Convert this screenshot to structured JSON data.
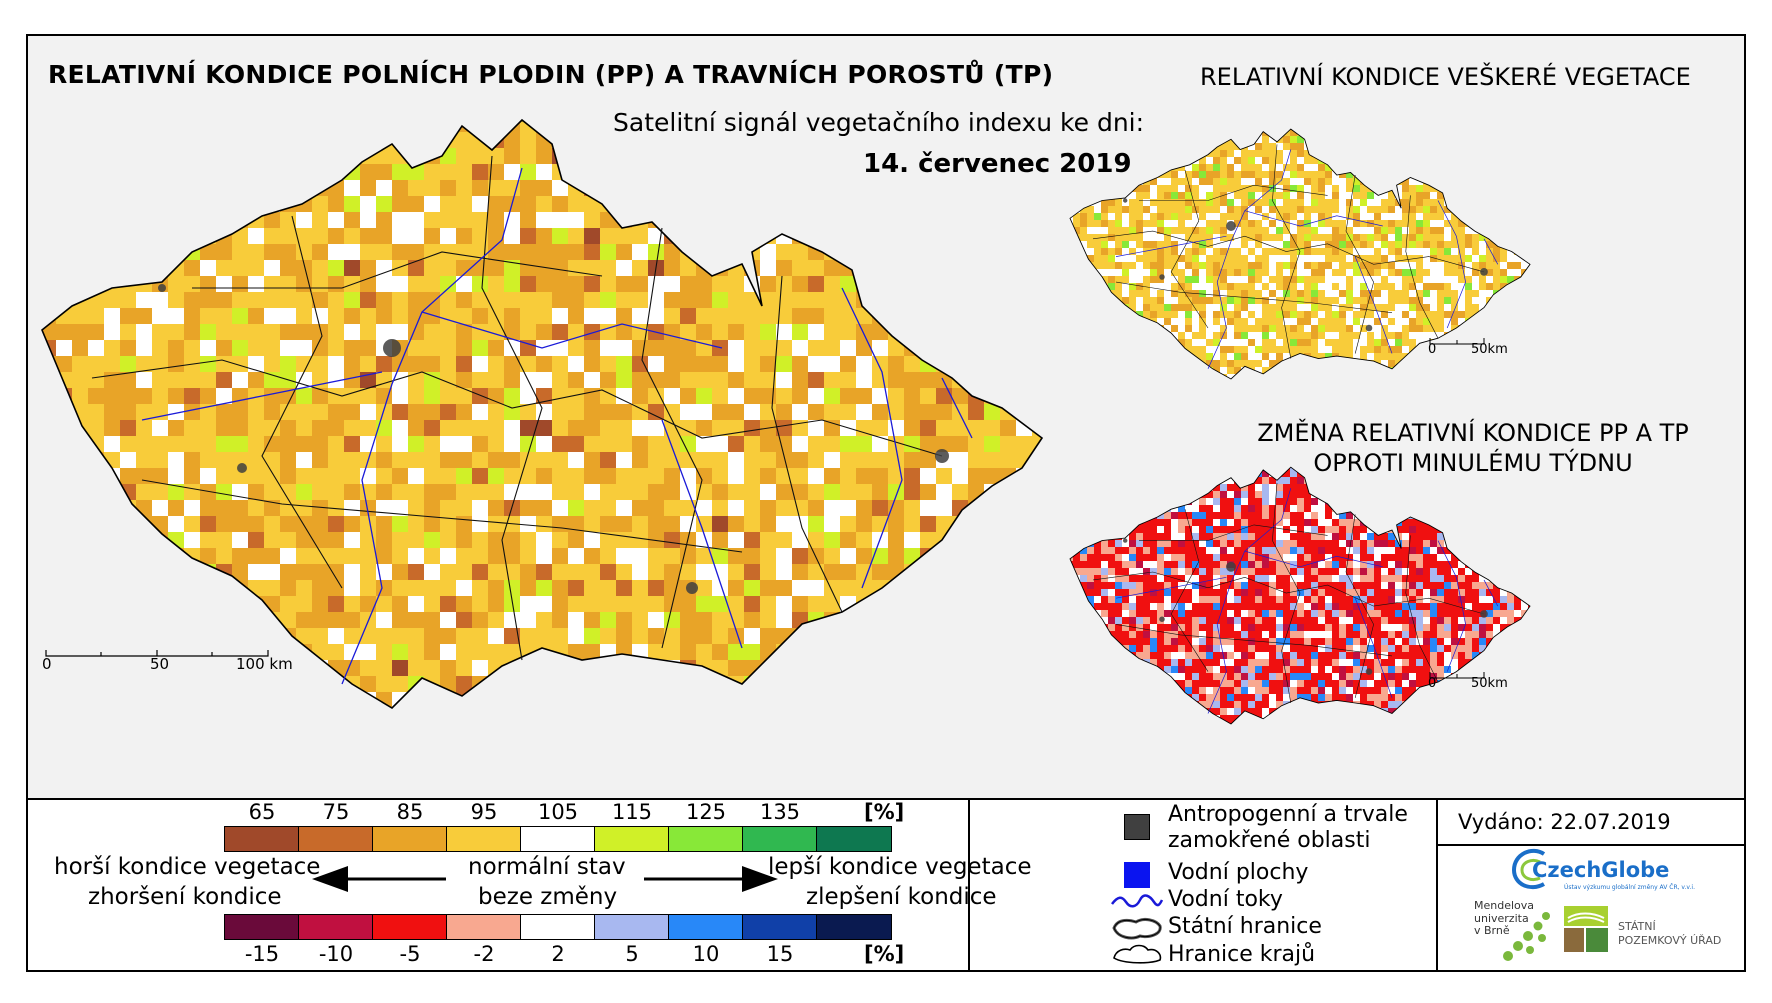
{
  "titles": {
    "main": "RELATIVNÍ KONDICE POLNÍCH PLODIN (PP) A TRAVNÍCH POROSTŮ (TP)",
    "subtitle": "Satelitní signál vegetačního indexu ke dni:",
    "date": "14. červenec 2019",
    "right_top": "RELATIVNÍ KONDICE VEŠKERÉ VEGETACE",
    "right_bottom": "ZMĚNA RELATIVNÍ KONDICE PP A TP OPROTI MINULÉMU TÝDNU"
  },
  "scale_main": {
    "labels": [
      "0",
      "50",
      "100 km"
    ]
  },
  "scale_small": {
    "labels": [
      "0",
      "50km"
    ]
  },
  "scale_small2": {
    "labels": [
      "0",
      "50km"
    ]
  },
  "legend": {
    "condition_ticks": [
      "65",
      "75",
      "85",
      "95",
      "105",
      "115",
      "125",
      "135"
    ],
    "condition_unit": "[%]",
    "condition_colors": [
      "#a0492a",
      "#c86a2a",
      "#e8a428",
      "#f8cc3a",
      "#ffffff",
      "#d0f028",
      "#88e838",
      "#30b850",
      "#0e7850"
    ],
    "change_ticks": [
      "-15",
      "-10",
      "-5",
      "-2",
      "2",
      "5",
      "10",
      "15"
    ],
    "change_unit": "[%]",
    "change_colors": [
      "#6a0a3a",
      "#c01040",
      "#f01010",
      "#f8a890",
      "#ffffff",
      "#a8b8f0",
      "#2888f8",
      "#1040a8",
      "#0a1a50"
    ],
    "left_label_1": "horší kondice vegetace",
    "left_label_2": "zhoršení kondice",
    "center_label_1": "normální stav",
    "center_label_2": "beze změny",
    "right_label_1": "lepší kondice vegetace",
    "right_label_2": "zlepšení kondice"
  },
  "key": {
    "anthropogenic": "Antropogenní a trvale zamokřené oblasti",
    "anthropogenic_l1": "Antropogenní a trvale",
    "anthropogenic_l2": "zamokřené oblasti",
    "water_bodies": "Vodní plochy",
    "rivers": "Vodní toky",
    "state_border": "Státní hranice",
    "region_border": "Hranice krajů",
    "anthropogenic_color": "#404040",
    "water_color": "#0a14f0",
    "river_color": "#1a1ad8"
  },
  "issued": "Vydáno: 22.07.2019",
  "logos": {
    "czechglobe": "CzechGlobe",
    "czechglobe_sub": "Ústav výzkumu globální změny AV ČR, v.v.i.",
    "mendel_1": "Mendelova",
    "mendel_2": "univerzita",
    "mendel_3": "v Brně",
    "spu_1": "STÁTNÍ",
    "spu_2": "POZEMKOVÝ ÚŘAD"
  }
}
